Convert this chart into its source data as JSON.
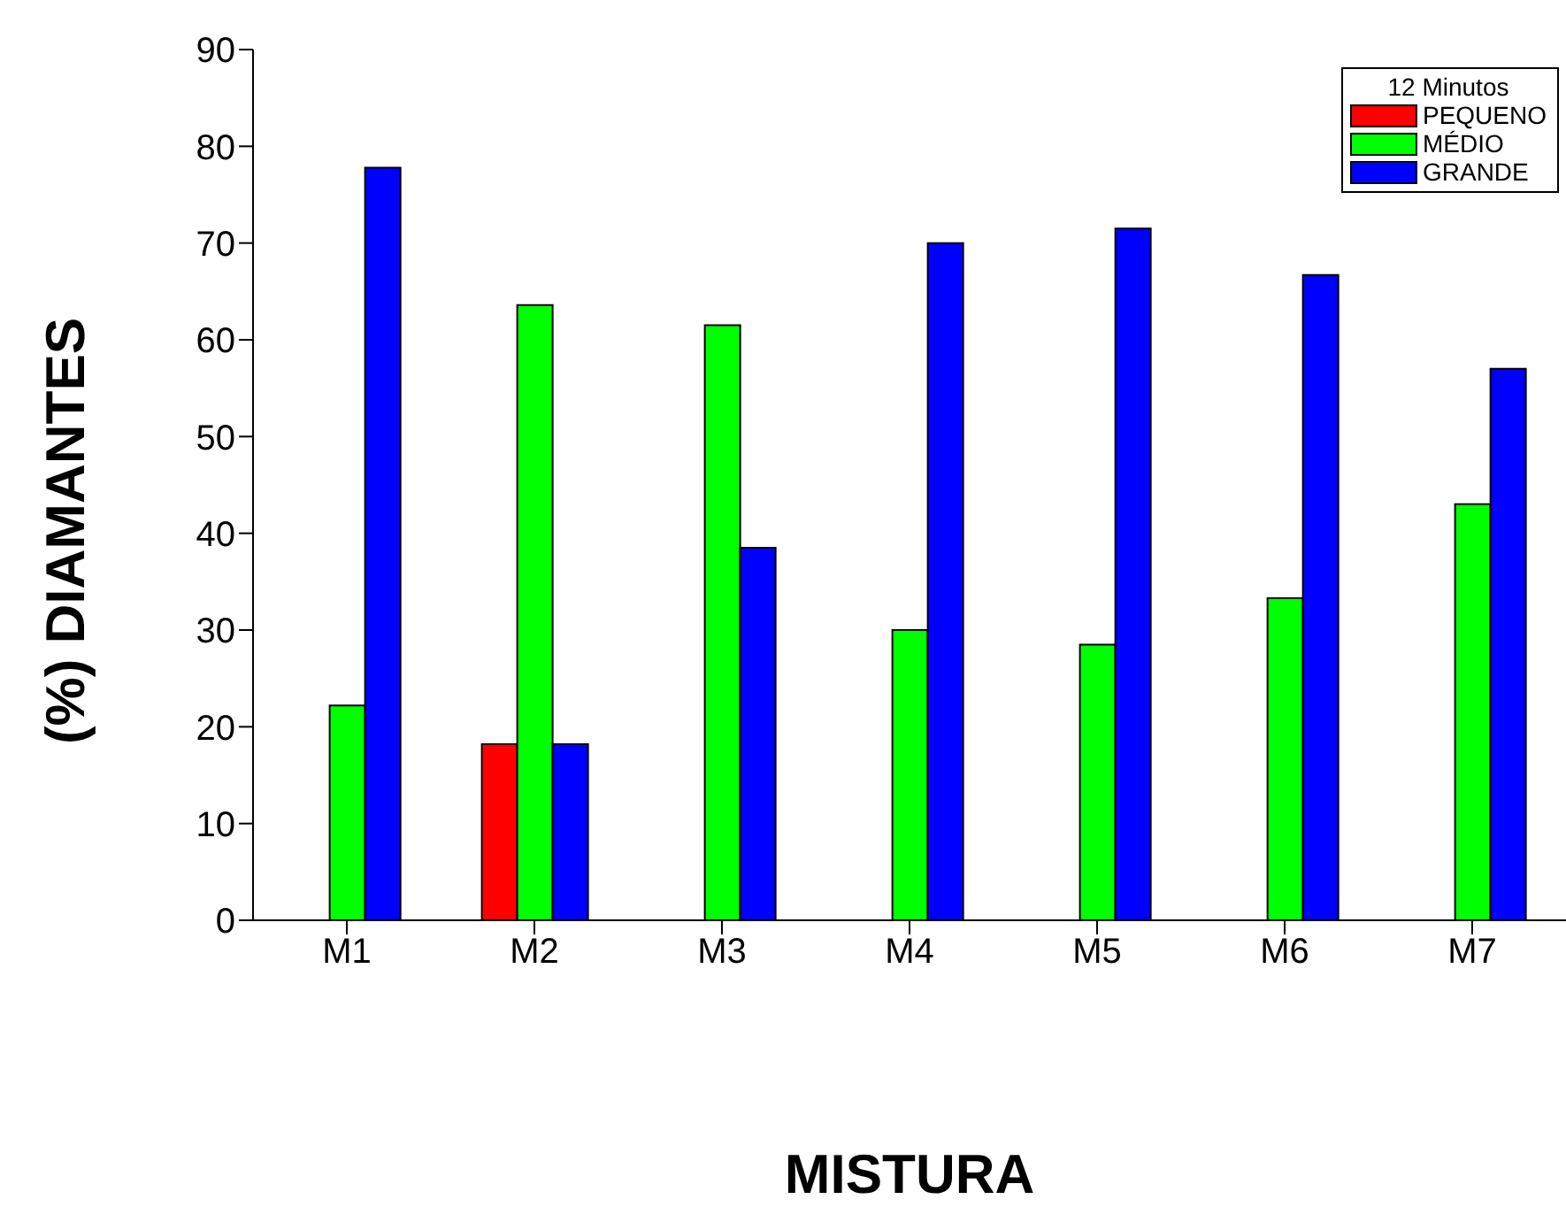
{
  "chart_data": {
    "type": "bar",
    "xlabel": "MISTURA",
    "ylabel": "(%) DIAMANTES",
    "legend_title": "12 Minutos",
    "legend": "top right",
    "categories": [
      "M1",
      "M2",
      "M3",
      "M4",
      "M5",
      "M6",
      "M7"
    ],
    "series": [
      {
        "name": "PEQUENO",
        "color": "#ff0000",
        "values": [
          null,
          18.2,
          null,
          null,
          null,
          null,
          null
        ]
      },
      {
        "name": "MÉDIO",
        "color": "#00ff00",
        "values": [
          22.2,
          63.6,
          61.5,
          30.0,
          28.5,
          33.3,
          43.0
        ]
      },
      {
        "name": "GRANDE",
        "color": "#0000ff",
        "values": [
          77.8,
          18.2,
          38.5,
          70.0,
          71.5,
          66.7,
          57.0
        ]
      }
    ],
    "ylim": [
      0,
      90
    ],
    "yticks": [
      0,
      10,
      20,
      30,
      40,
      50,
      60,
      70,
      80,
      90
    ],
    "grid": false
  }
}
